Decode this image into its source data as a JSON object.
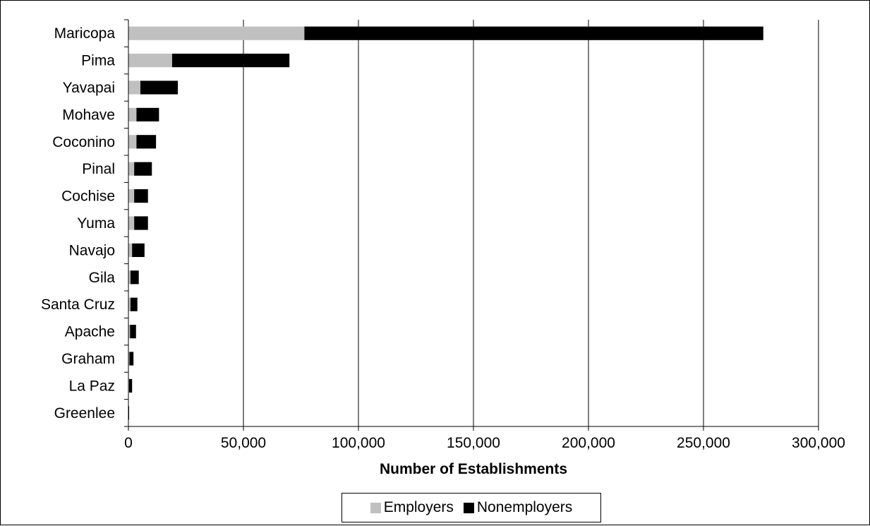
{
  "chart_data": {
    "type": "bar",
    "orientation": "horizontal",
    "stacked": true,
    "title": "",
    "xlabel": "Number of Establishments",
    "ylabel": "",
    "xlim": [
      0,
      300000
    ],
    "x_ticks": [
      0,
      50000,
      100000,
      150000,
      200000,
      250000,
      300000
    ],
    "x_tick_labels": [
      "0",
      "50,000",
      "100,000",
      "150,000",
      "200,000",
      "250,000",
      "300,000"
    ],
    "grid": "vertical major gridlines",
    "legend_position": "bottom",
    "categories": [
      "Maricopa",
      "Pima",
      "Yavapai",
      "Mohave",
      "Coconino",
      "Pinal",
      "Cochise",
      "Yuma",
      "Navajo",
      "Gila",
      "Santa Cruz",
      "Apache",
      "Graham",
      "La Paz",
      "Greenlee"
    ],
    "series": [
      {
        "name": "Employers",
        "color": "#c0c0c0",
        "values": [
          76500,
          19000,
          5200,
          3500,
          3500,
          2500,
          2500,
          2500,
          1600,
          900,
          900,
          700,
          450,
          300,
          100
        ]
      },
      {
        "name": "Nonemployers",
        "color": "#000000",
        "values": [
          199500,
          51000,
          16300,
          9800,
          8500,
          7700,
          6000,
          6000,
          5400,
          3600,
          3000,
          2600,
          1750,
          1300,
          200
        ]
      }
    ]
  }
}
